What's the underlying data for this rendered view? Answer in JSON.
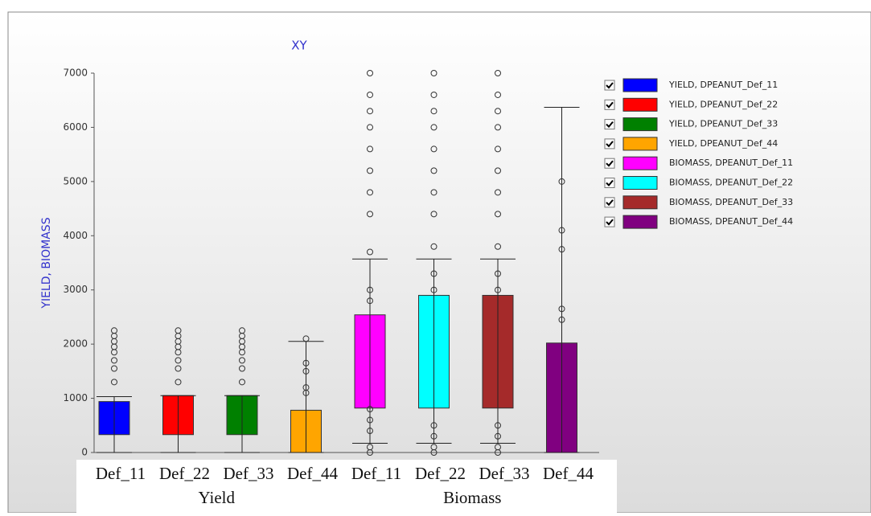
{
  "chart_data": {
    "type": "box",
    "title": "XY",
    "y_label": "YIELD, BIOMASS",
    "categories": [
      "Def_11",
      "Def_22",
      "Def_33",
      "Def_44",
      "Def_11",
      "Def_22",
      "Def_33",
      "Def_44"
    ],
    "group_labels": [
      "Yield",
      "Biomass"
    ],
    "ylim": [
      0,
      7000
    ],
    "yticks": [
      0,
      1000,
      2000,
      3000,
      4000,
      5000,
      6000,
      7000
    ],
    "series": [
      {
        "name": "YIELD, DPEANUT_Def_11",
        "color": "#0000ff",
        "low": 0,
        "q1": 330,
        "q3": 940,
        "high": 1030,
        "outliers": [
          1300,
          1550,
          1700,
          1850,
          1950,
          2050,
          2150,
          2250
        ]
      },
      {
        "name": "YIELD, DPEANUT_Def_22",
        "color": "#ff0000",
        "low": 0,
        "q1": 330,
        "q3": 1050,
        "high": 1050,
        "outliers": [
          1300,
          1550,
          1700,
          1850,
          1950,
          2050,
          2150,
          2250
        ]
      },
      {
        "name": "YIELD, DPEANUT_Def_33",
        "color": "#008000",
        "low": 0,
        "q1": 330,
        "q3": 1050,
        "high": 1050,
        "outliers": [
          1300,
          1550,
          1700,
          1850,
          1950,
          2050,
          2150,
          2250
        ]
      },
      {
        "name": "YIELD, DPEANUT_Def_44",
        "color": "#ffa500",
        "low": 0,
        "q1": 0,
        "q3": 780,
        "high": 2050,
        "outliers": [
          1100,
          1200,
          1500,
          1650,
          2100
        ]
      },
      {
        "name": "BIOMASS, DPEANUT_Def_11",
        "color": "#ff00ff",
        "low": 170,
        "q1": 820,
        "q3": 2540,
        "high": 3570,
        "outliers": [
          0,
          100,
          400,
          600,
          800,
          2800,
          3000,
          3700,
          4400,
          4800,
          5200,
          5600,
          6000,
          6300,
          6600,
          7000
        ]
      },
      {
        "name": "BIOMASS, DPEANUT_Def_22",
        "color": "#00ffff",
        "low": 170,
        "q1": 820,
        "q3": 2900,
        "high": 3570,
        "outliers": [
          0,
          100,
          300,
          500,
          3000,
          3300,
          3800,
          4400,
          4800,
          5200,
          5600,
          6000,
          6300,
          6600,
          7000
        ]
      },
      {
        "name": "BIOMASS, DPEANUT_Def_33",
        "color": "#a52a2a",
        "low": 170,
        "q1": 820,
        "q3": 2900,
        "high": 3570,
        "outliers": [
          0,
          100,
          300,
          500,
          3000,
          3300,
          3800,
          4400,
          4800,
          5200,
          5600,
          6000,
          6300,
          6600,
          7000
        ]
      },
      {
        "name": "BIOMASS, DPEANUT_Def_44",
        "color": "#800080",
        "low": 0,
        "q1": 0,
        "q3": 2020,
        "high": 6370,
        "outliers": [
          2450,
          2650,
          3750,
          4100,
          5000
        ]
      }
    ]
  }
}
